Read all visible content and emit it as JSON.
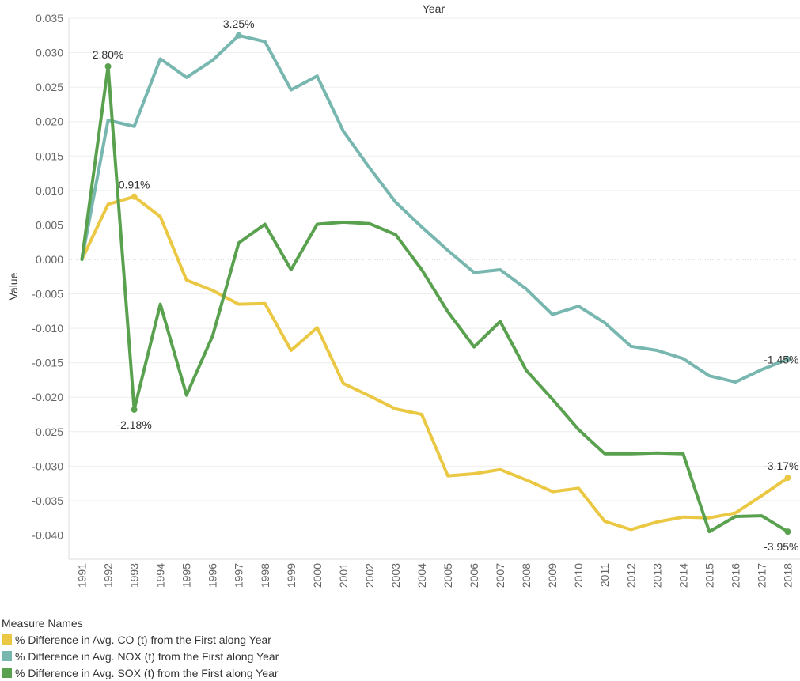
{
  "chart_data": {
    "type": "line",
    "title": "Year",
    "xlabel": "",
    "ylabel": "Value",
    "x": [
      "1991",
      "1992",
      "1993",
      "1994",
      "1995",
      "1996",
      "1997",
      "1998",
      "1999",
      "2000",
      "2001",
      "2002",
      "2003",
      "2004",
      "2005",
      "2006",
      "2007",
      "2008",
      "2009",
      "2010",
      "2011",
      "2012",
      "2013",
      "2014",
      "2015",
      "2016",
      "2017",
      "2018"
    ],
    "ylim": [
      -0.0435,
      0.035
    ],
    "yticks": [
      "0.035",
      "0.030",
      "0.025",
      "0.020",
      "0.015",
      "0.010",
      "0.005",
      "0.000",
      "-0.005",
      "-0.010",
      "-0.015",
      "-0.020",
      "-0.025",
      "-0.030",
      "-0.035",
      "-0.040"
    ],
    "ytick_values": [
      0.035,
      0.03,
      0.025,
      0.02,
      0.015,
      0.01,
      0.005,
      0.0,
      -0.005,
      -0.01,
      -0.015,
      -0.02,
      -0.025,
      -0.03,
      -0.035,
      -0.04
    ],
    "grid": true,
    "series": [
      {
        "name": "% Difference in Avg. CO (t) from the First along Year",
        "color": "#EBC844",
        "values": [
          0.0,
          0.008,
          0.0091,
          0.0062,
          -0.003,
          -0.0045,
          -0.0065,
          -0.0064,
          -0.0132,
          -0.0099,
          -0.018,
          -0.0198,
          -0.0217,
          -0.0225,
          -0.0314,
          -0.0311,
          -0.0305,
          -0.032,
          -0.0337,
          -0.0332,
          -0.038,
          -0.0392,
          -0.0381,
          -0.0374,
          -0.0375,
          -0.0368,
          -0.0343,
          -0.0317
        ],
        "labels": [
          {
            "index": 2,
            "text": "0.91%",
            "pos": "above"
          },
          {
            "index": 27,
            "text": "-3.17%",
            "pos": "above-left"
          }
        ]
      },
      {
        "name": "% Difference in Avg. NOX (t) from the First along Year",
        "color": "#78B7B0",
        "values": [
          0.0,
          0.0202,
          0.0193,
          0.0291,
          0.0264,
          0.0289,
          0.0325,
          0.0316,
          0.0246,
          0.0266,
          0.0186,
          0.0133,
          0.0083,
          0.0047,
          0.0013,
          -0.0019,
          -0.0015,
          -0.0043,
          -0.008,
          -0.0068,
          -0.0092,
          -0.0126,
          -0.0132,
          -0.0144,
          -0.0169,
          -0.0178,
          -0.016,
          -0.0145
        ],
        "labels": [
          {
            "index": 6,
            "text": "3.25%",
            "pos": "above"
          },
          {
            "index": 27,
            "text": "-1.45%",
            "pos": "left"
          }
        ]
      },
      {
        "name": "% Difference in Avg. SOX (t) from the First along Year",
        "color": "#59A14F",
        "values": [
          0.0,
          0.028,
          -0.0218,
          -0.0065,
          -0.0197,
          -0.0111,
          0.0024,
          0.0051,
          -0.0015,
          0.0051,
          0.0054,
          0.0052,
          0.0036,
          -0.0015,
          -0.0076,
          -0.0127,
          -0.009,
          -0.0161,
          -0.0203,
          -0.0247,
          -0.0282,
          -0.0282,
          -0.0281,
          -0.0282,
          -0.0395,
          -0.0373,
          -0.0372,
          -0.0395
        ],
        "labels": [
          {
            "index": 1,
            "text": "2.80%",
            "pos": "above"
          },
          {
            "index": 2,
            "text": "-2.18%",
            "pos": "below"
          },
          {
            "index": 27,
            "text": "-3.95%",
            "pos": "below-left"
          }
        ]
      }
    ]
  },
  "legend": {
    "title": "Measure Names",
    "items": [
      {
        "label": "% Difference in Avg. CO (t) from the First along Year",
        "color": "#EBC844"
      },
      {
        "label": "% Difference in Avg. NOX (t) from the First along Year",
        "color": "#78B7B0"
      },
      {
        "label": "% Difference in Avg. SOX (t) from the First along Year",
        "color": "#59A14F"
      }
    ]
  }
}
